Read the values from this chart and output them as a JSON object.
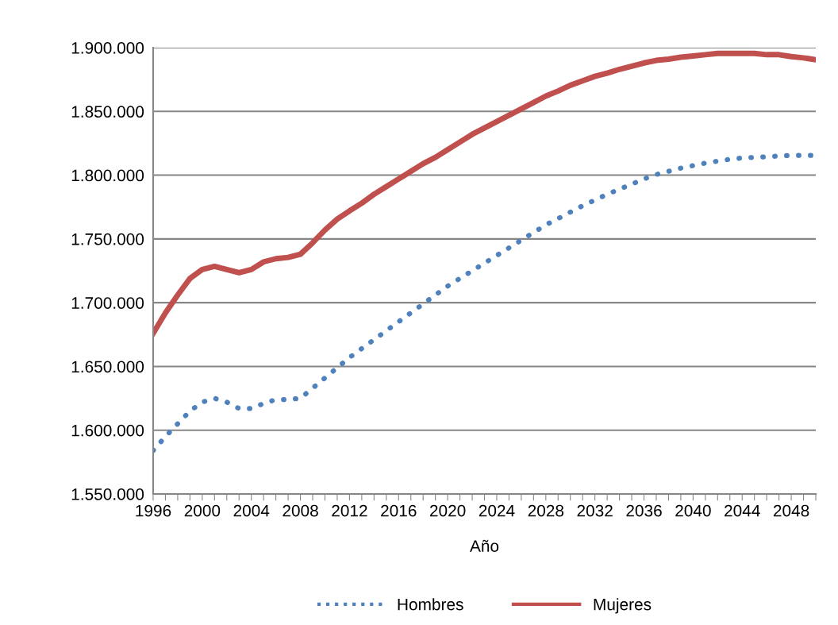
{
  "chart_data": {
    "type": "line",
    "xlabel": "Año",
    "x": [
      1996,
      1997,
      1998,
      1999,
      2000,
      2001,
      2002,
      2003,
      2004,
      2005,
      2006,
      2007,
      2008,
      2009,
      2010,
      2011,
      2012,
      2013,
      2014,
      2015,
      2016,
      2017,
      2018,
      2019,
      2020,
      2021,
      2022,
      2023,
      2024,
      2025,
      2026,
      2027,
      2028,
      2029,
      2030,
      2031,
      2032,
      2033,
      2034,
      2035,
      2036,
      2037,
      2038,
      2039,
      2040,
      2041,
      2042,
      2043,
      2044,
      2045,
      2046,
      2047,
      2048,
      2049,
      2050
    ],
    "series": [
      {
        "name": "Hombres",
        "color": "#4f81bd",
        "line_style": "dotted",
        "values": [
          1584000,
          1595000,
          1605000,
          1615000,
          1622000,
          1625000,
          1622000,
          1617000,
          1617000,
          1621000,
          1624000,
          1624000,
          1625000,
          1633000,
          1641000,
          1649000,
          1657000,
          1664000,
          1671000,
          1678000,
          1685000,
          1692000,
          1699000,
          1706000,
          1713000,
          1719000,
          1725000,
          1731000,
          1737000,
          1743000,
          1749000,
          1755000,
          1761000,
          1766000,
          1771000,
          1776000,
          1780500,
          1785000,
          1789000,
          1793000,
          1797000,
          1800500,
          1803000,
          1805500,
          1807500,
          1809500,
          1811000,
          1812500,
          1813500,
          1814000,
          1814500,
          1815000,
          1815500,
          1815500,
          1815500
        ]
      },
      {
        "name": "Mujeres",
        "color": "#c0504d",
        "line_style": "solid",
        "values": [
          1676000,
          1692000,
          1706000,
          1719000,
          1726000,
          1728500,
          1726000,
          1723500,
          1726000,
          1732000,
          1734500,
          1735500,
          1738000,
          1747000,
          1757000,
          1765500,
          1772000,
          1778000,
          1785000,
          1791000,
          1797000,
          1803000,
          1809000,
          1814000,
          1820000,
          1826000,
          1832000,
          1837000,
          1842000,
          1847000,
          1852000,
          1857000,
          1862000,
          1866000,
          1870500,
          1874000,
          1877500,
          1880000,
          1883000,
          1885500,
          1888000,
          1890000,
          1891000,
          1892500,
          1893500,
          1894500,
          1895500,
          1895500,
          1895500,
          1895500,
          1894500,
          1894500,
          1893000,
          1892000,
          1890500
        ]
      }
    ],
    "xlim": [
      1996,
      2050
    ],
    "xticks": [
      1996,
      {
        "value": 1997,
        "label": null
      },
      {
        "value": 1998,
        "label": null
      },
      {
        "value": 1999,
        "label": null
      },
      2000,
      {
        "value": 2001,
        "label": null
      },
      {
        "value": 2002,
        "label": null
      },
      {
        "value": 2003,
        "label": null
      },
      2004,
      {
        "value": 2005,
        "label": null
      },
      {
        "value": 2006,
        "label": null
      },
      {
        "value": 2007,
        "label": null
      },
      2008,
      {
        "value": 2009,
        "label": null
      },
      {
        "value": 2010,
        "label": null
      },
      {
        "value": 2011,
        "label": null
      },
      2012,
      {
        "value": 2013,
        "label": null
      },
      {
        "value": 2014,
        "label": null
      },
      {
        "value": 2015,
        "label": null
      },
      2016,
      {
        "value": 2017,
        "label": null
      },
      {
        "value": 2018,
        "label": null
      },
      {
        "value": 2019,
        "label": null
      },
      2020,
      {
        "value": 2021,
        "label": null
      },
      {
        "value": 2022,
        "label": null
      },
      {
        "value": 2023,
        "label": null
      },
      2024,
      {
        "value": 2025,
        "label": null
      },
      {
        "value": 2026,
        "label": null
      },
      {
        "value": 2027,
        "label": null
      },
      2028,
      {
        "value": 2029,
        "label": null
      },
      {
        "value": 2030,
        "label": null
      },
      {
        "value": 2031,
        "label": null
      },
      2032,
      {
        "value": 2033,
        "label": null
      },
      {
        "value": 2034,
        "label": null
      },
      {
        "value": 2035,
        "label": null
      },
      2036,
      {
        "value": 2037,
        "label": null
      },
      {
        "value": 2038,
        "label": null
      },
      {
        "value": 2039,
        "label": null
      },
      2040,
      {
        "value": 2041,
        "label": null
      },
      {
        "value": 2042,
        "label": null
      },
      {
        "value": 2043,
        "label": null
      },
      2044,
      {
        "value": 2045,
        "label": null
      },
      {
        "value": 2046,
        "label": null
      },
      {
        "value": 2047,
        "label": null
      },
      2048,
      {
        "value": 2049,
        "label": null
      },
      {
        "value": 2050,
        "label": null
      }
    ],
    "ylim": [
      1550000,
      1900000
    ],
    "yticks": [
      {
        "value": 1550000,
        "label": "1.550.000"
      },
      {
        "value": 1600000,
        "label": "1.600.000"
      },
      {
        "value": 1650000,
        "label": "1.650.000"
      },
      {
        "value": 1700000,
        "label": "1.700.000"
      },
      {
        "value": 1750000,
        "label": "1.750.000"
      },
      {
        "value": 1800000,
        "label": "1.800.000"
      },
      {
        "value": 1850000,
        "label": "1.850.000"
      },
      {
        "value": 1900000,
        "label": "1.900.000"
      }
    ],
    "grid": "y",
    "legend": "bottom"
  }
}
